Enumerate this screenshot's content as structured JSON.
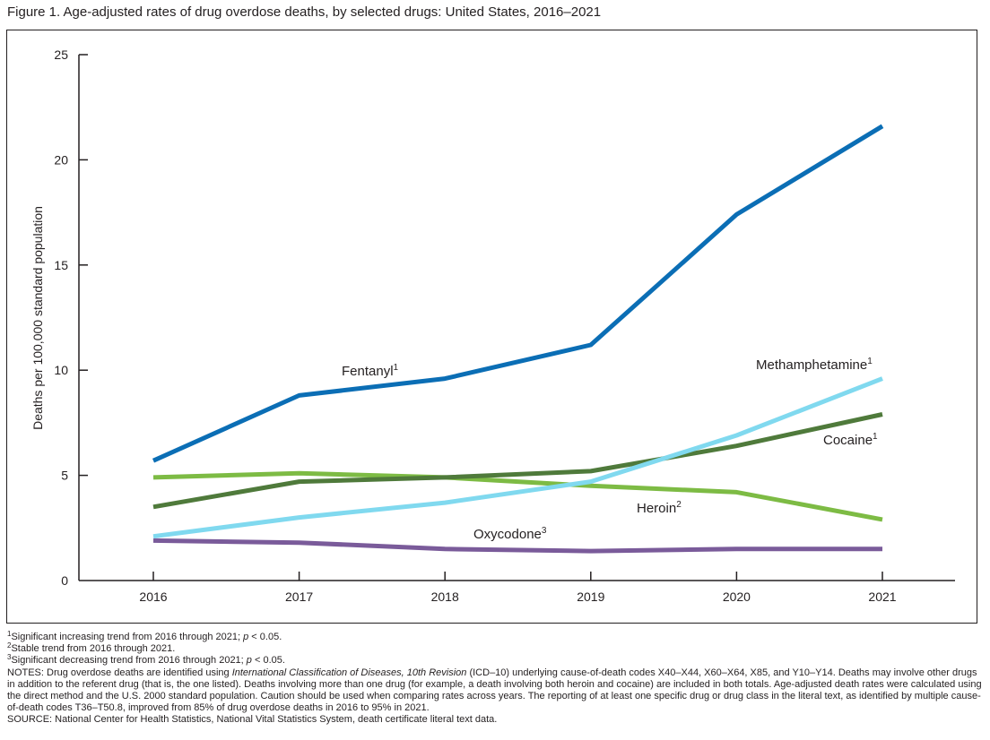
{
  "figure_title": "Figure 1. Age-adjusted rates of drug overdose deaths, by selected drugs: United States, 2016–2021",
  "chart_data": {
    "type": "line",
    "title": "Figure 1. Age-adjusted rates of drug overdose deaths, by selected drugs: United States, 2016–2021",
    "xlabel": "",
    "ylabel": "Deaths per 100,000 standard population",
    "x": [
      "2016",
      "2017",
      "2018",
      "2019",
      "2020",
      "2021"
    ],
    "ylim": [
      0,
      25
    ],
    "yticks": [
      0,
      5,
      10,
      15,
      20,
      25
    ],
    "grid": false,
    "legend": "inline labels",
    "series": [
      {
        "name": "Fentanyl",
        "sup": "1",
        "color": "#0b6eb5",
        "values": [
          5.7,
          8.8,
          9.6,
          11.2,
          17.4,
          21.6
        ]
      },
      {
        "name": "Methamphetamine",
        "sup": "1",
        "color": "#80d9ef",
        "values": [
          2.1,
          3.0,
          3.7,
          4.7,
          6.9,
          9.6
        ]
      },
      {
        "name": "Cocaine",
        "sup": "1",
        "color": "#4f7a3b",
        "values": [
          3.5,
          4.7,
          4.9,
          5.2,
          6.4,
          7.9
        ]
      },
      {
        "name": "Heroin",
        "sup": "2",
        "color": "#7dbb44",
        "values": [
          4.9,
          5.1,
          4.9,
          4.5,
          4.2,
          2.9
        ]
      },
      {
        "name": "Oxycodone",
        "sup": "3",
        "color": "#7a5b9a",
        "values": [
          1.9,
          1.8,
          1.5,
          1.4,
          1.5,
          1.5
        ]
      }
    ]
  },
  "notes": {
    "fn1_sup": "1",
    "fn1_text": "Significant increasing trend from 2016 through 2021; ",
    "fn1_p": "p",
    "fn1_end": " < 0.05.",
    "fn2_sup": "2",
    "fn2_text": "Stable trend from 2016 through 2021.",
    "fn3_sup": "3",
    "fn3_text": "Significant decreasing trend from 2016 through 2021; ",
    "fn3_p": "p",
    "fn3_end": " < 0.05.",
    "notes_a": "NOTES: Drug overdose deaths are identified using ",
    "notes_icd": "International Classification of Diseases, 10th Revision",
    "notes_b": " (ICD–10) underlying cause-of-death codes X40–X44, X60–X64, X85, and Y10–Y14. Deaths may involve other drugs in addition to the referent drug (that is, the one listed). Deaths involving more than one drug (for example, a death involving both heroin and cocaine) are included in both totals. Age-adjusted death rates were calculated using the direct method and the U.S. 2000 standard population. Caution should be used when comparing rates across years. The reporting of at least one specific drug or drug class in the literal text, as identified by multiple cause-of-death codes T36–T50.8, improved from 85% of drug overdose deaths in 2016 to 95% in 2021.",
    "source": "SOURCE: National Center for Health Statistics, National Vital Statistics System, death certificate literal text data."
  }
}
